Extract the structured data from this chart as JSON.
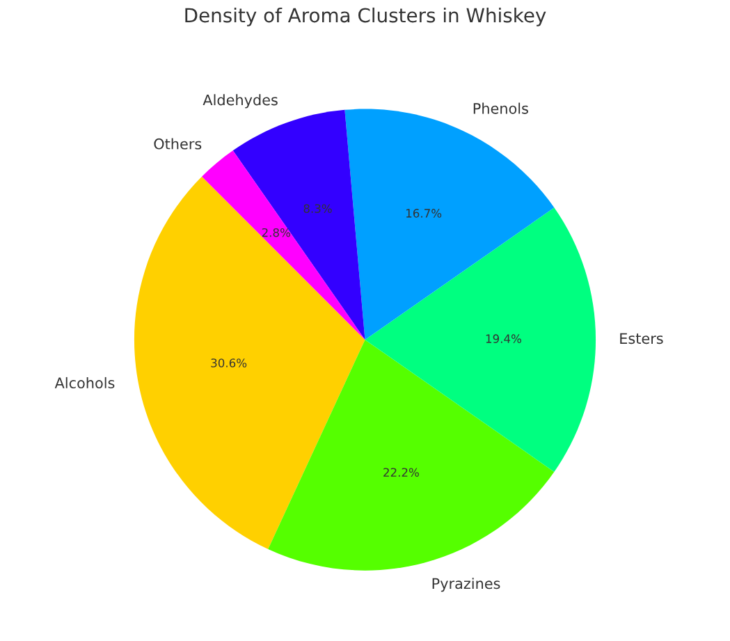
{
  "chart_data": {
    "type": "pie",
    "title": "Density of Aroma Clusters in Whiskey",
    "categories": [
      "Alcohols",
      "Pyrazines",
      "Esters",
      "Phenols",
      "Aldehydes",
      "Others"
    ],
    "values": [
      30.6,
      22.2,
      19.4,
      16.7,
      8.3,
      2.8
    ],
    "value_labels": [
      "30.6%",
      "22.2%",
      "19.4%",
      "16.7%",
      "8.3%",
      "2.8%"
    ],
    "colors": [
      "#ffd000",
      "#55ff00",
      "#00ff80",
      "#00a0ff",
      "#3300ff",
      "#ff00ff"
    ],
    "legend": false
  }
}
